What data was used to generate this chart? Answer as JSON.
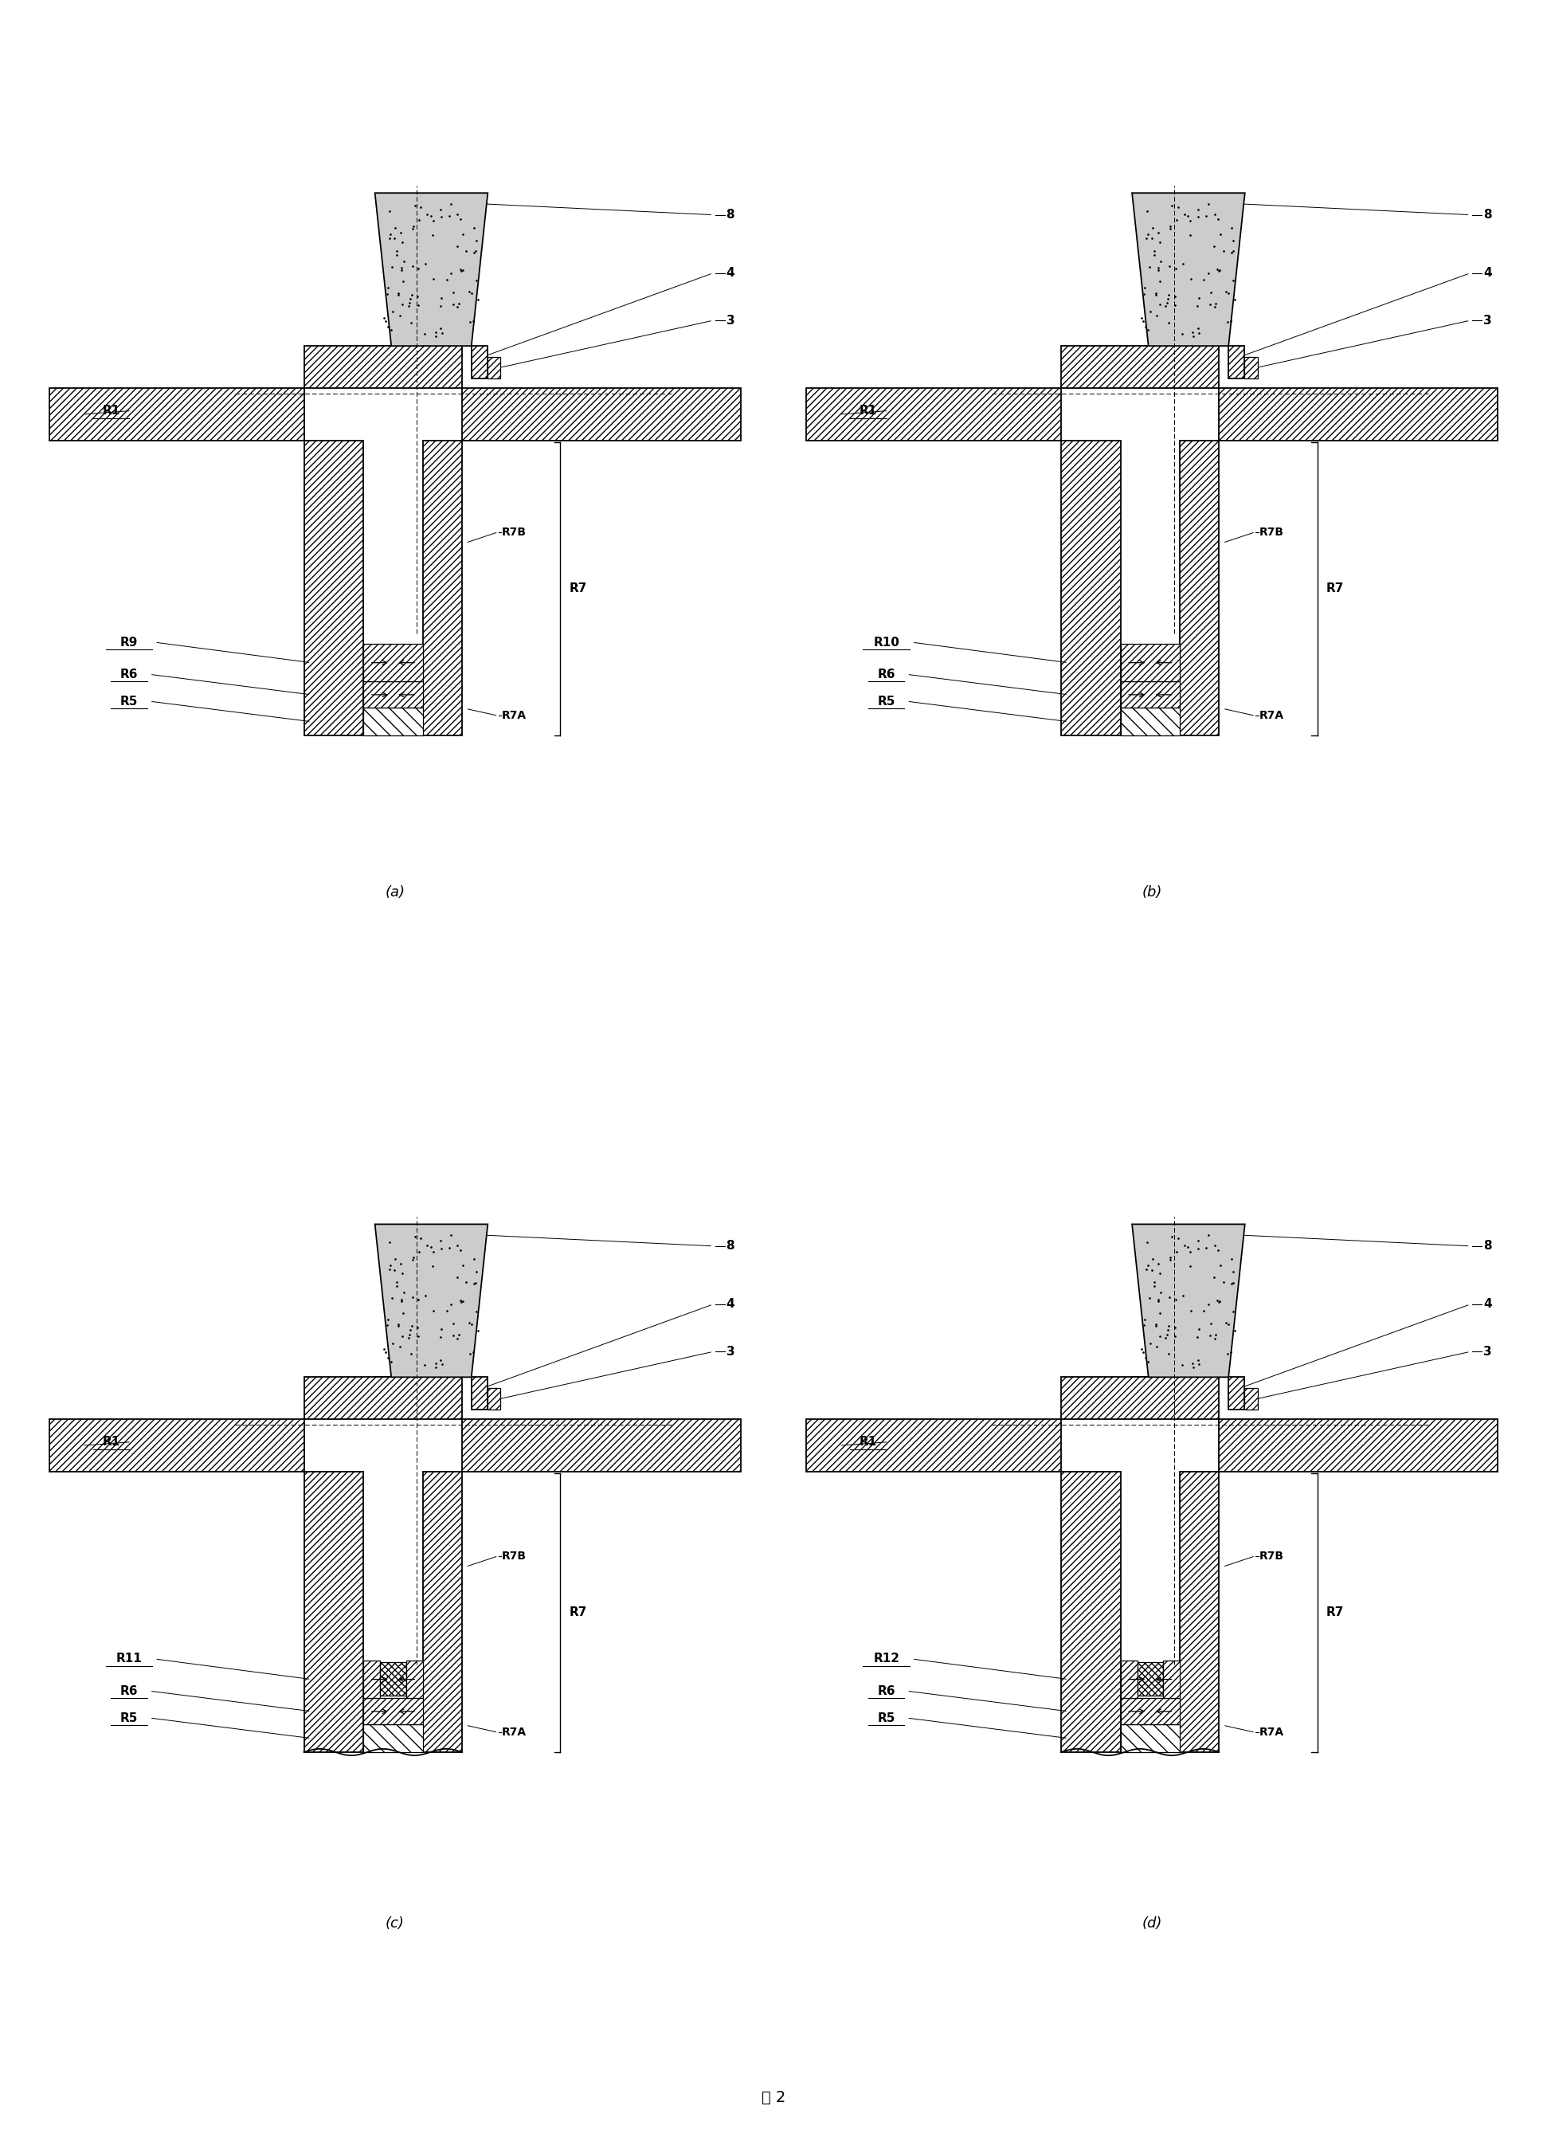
{
  "figure_title": "图 2",
  "background_color": "#ffffff",
  "line_color": "#000000",
  "subplots": [
    "(a)",
    "(b)",
    "(c)",
    "(d)"
  ],
  "labels_a": [
    "R1",
    "R9",
    "R6",
    "R5",
    "R7B",
    "R7A",
    "R7",
    "8",
    "4",
    "3"
  ],
  "labels_b": [
    "R1",
    "R10",
    "R6",
    "R5",
    "R7B",
    "R7A",
    "R7",
    "8",
    "4",
    "3"
  ],
  "labels_c": [
    "R1",
    "R11",
    "R6",
    "R5",
    "R7B",
    "R7A",
    "R7",
    "8",
    "4",
    "3"
  ],
  "labels_d": [
    "R1",
    "R12",
    "R6",
    "R5",
    "R7B",
    "R7A",
    "R7",
    "8",
    "4",
    "3"
  ],
  "font_size_label": 11,
  "font_size_title": 14
}
